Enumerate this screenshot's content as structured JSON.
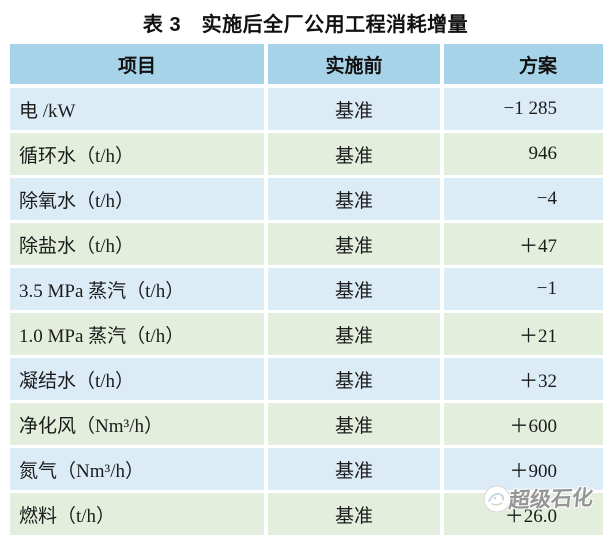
{
  "title": "表 3　实施后全厂公用工程消耗增量",
  "table": {
    "columns": [
      "项目",
      "实施前",
      "方案"
    ],
    "rows": [
      {
        "item": "电 /kW",
        "before": "基准",
        "plan": "−1 285"
      },
      {
        "item": "循环水（t/h）",
        "before": "基准",
        "plan": "946"
      },
      {
        "item": "除氧水（t/h）",
        "before": "基准",
        "plan": "−4"
      },
      {
        "item": "除盐水（t/h）",
        "before": "基准",
        "plan": "＋47"
      },
      {
        "item": "3.5 MPa 蒸汽（t/h）",
        "before": "基准",
        "plan": "−1"
      },
      {
        "item": "1.0 MPa 蒸汽（t/h）",
        "before": "基准",
        "plan": "＋21"
      },
      {
        "item": "凝结水（t/h）",
        "before": "基准",
        "plan": "＋32"
      },
      {
        "item": "净化风（Nm³/h）",
        "before": "基准",
        "plan": "＋600"
      },
      {
        "item": "氮气（Nm³/h）",
        "before": "基准",
        "plan": "＋900"
      },
      {
        "item": "燃料（t/h）",
        "before": "基准",
        "plan": "＋26.0"
      }
    ]
  },
  "watermark": {
    "text": "超级石化"
  },
  "colors": {
    "header_bg": "#a7d3e9",
    "row_blue": "#dcecf7",
    "row_green": "#e3eedd",
    "text": "#1c1c1c",
    "watermark_text": "#8f8f8f"
  }
}
